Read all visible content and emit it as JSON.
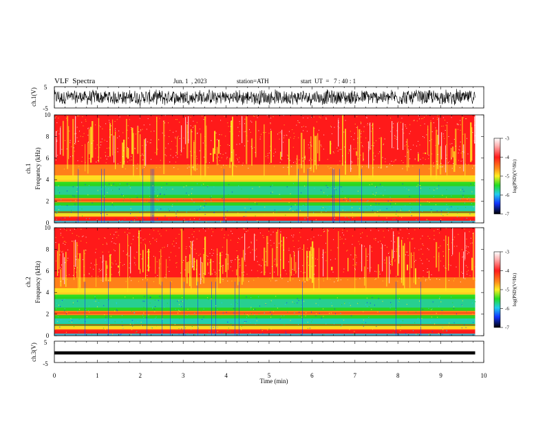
{
  "header": {
    "title": "VLF  Spectra",
    "date": "Jun. 1  , 2023",
    "station": "station=ATH",
    "start": "start  UT  =   7 : 40 : 1"
  },
  "chart_data": [
    {
      "type": "line",
      "panel": "ch1-waveform",
      "ylabel": "ch.1(V)",
      "yticks": [
        "5",
        "-5"
      ],
      "ylim": [
        -5,
        5
      ],
      "xlim": [
        0,
        10
      ],
      "data_span_min": [
        0,
        9.8
      ],
      "description_series": "noisy voltage waveform"
    },
    {
      "type": "heatmap",
      "panel": "ch1-spectrogram",
      "ylabel": "ch.1\nFrequency  (kHz)",
      "ylabel_lines": [
        "ch.1",
        "Frequency  (kHz)"
      ],
      "yticks": [
        "0",
        "2",
        "4",
        "6",
        "8",
        "10"
      ],
      "ylim": [
        0,
        10
      ],
      "xlim": [
        0,
        10
      ],
      "colorbar": {
        "label": "log(PSD)(V²/Hz)",
        "ticks": [
          "-3",
          "-4",
          "-5",
          "-6",
          "-7"
        ],
        "range": [
          -7,
          -3
        ]
      }
    },
    {
      "type": "heatmap",
      "panel": "ch2-spectrogram",
      "ylabel": "ch.2\nFrequency  (kHz)",
      "ylabel_lines": [
        "ch.2",
        "Frequency  (kHz)"
      ],
      "yticks": [
        "0",
        "2",
        "4",
        "6",
        "8",
        "10"
      ],
      "ylim": [
        0,
        10
      ],
      "xlim": [
        0,
        10
      ],
      "colorbar": {
        "label": "log(PSD)(V²/Hz)",
        "ticks": [
          "-3",
          "-4",
          "-5",
          "-6",
          "-7"
        ],
        "range": [
          -7,
          -3
        ]
      }
    },
    {
      "type": "line",
      "panel": "ch3-waveform",
      "ylabel": "ch.3(V)",
      "yticks": [
        "5",
        "-5"
      ],
      "ylim": [
        -5,
        5
      ],
      "xlim": [
        0,
        10
      ],
      "data_span_min": [
        0,
        9.8
      ],
      "level_v": -0.5
    }
  ],
  "xaxis": {
    "label": "Time  (min)",
    "ticks": [
      "0",
      "1",
      "2",
      "3",
      "4",
      "5",
      "6",
      "7",
      "8",
      "9",
      "10"
    ]
  },
  "colors": {
    "red": "#ff1a1a",
    "orange": "#ff8c1a",
    "yellow": "#ffee22",
    "green": "#22dd22",
    "cyan": "#22ccee",
    "blue": "#1133ff",
    "black": "#000000",
    "white": "#ffffff"
  }
}
